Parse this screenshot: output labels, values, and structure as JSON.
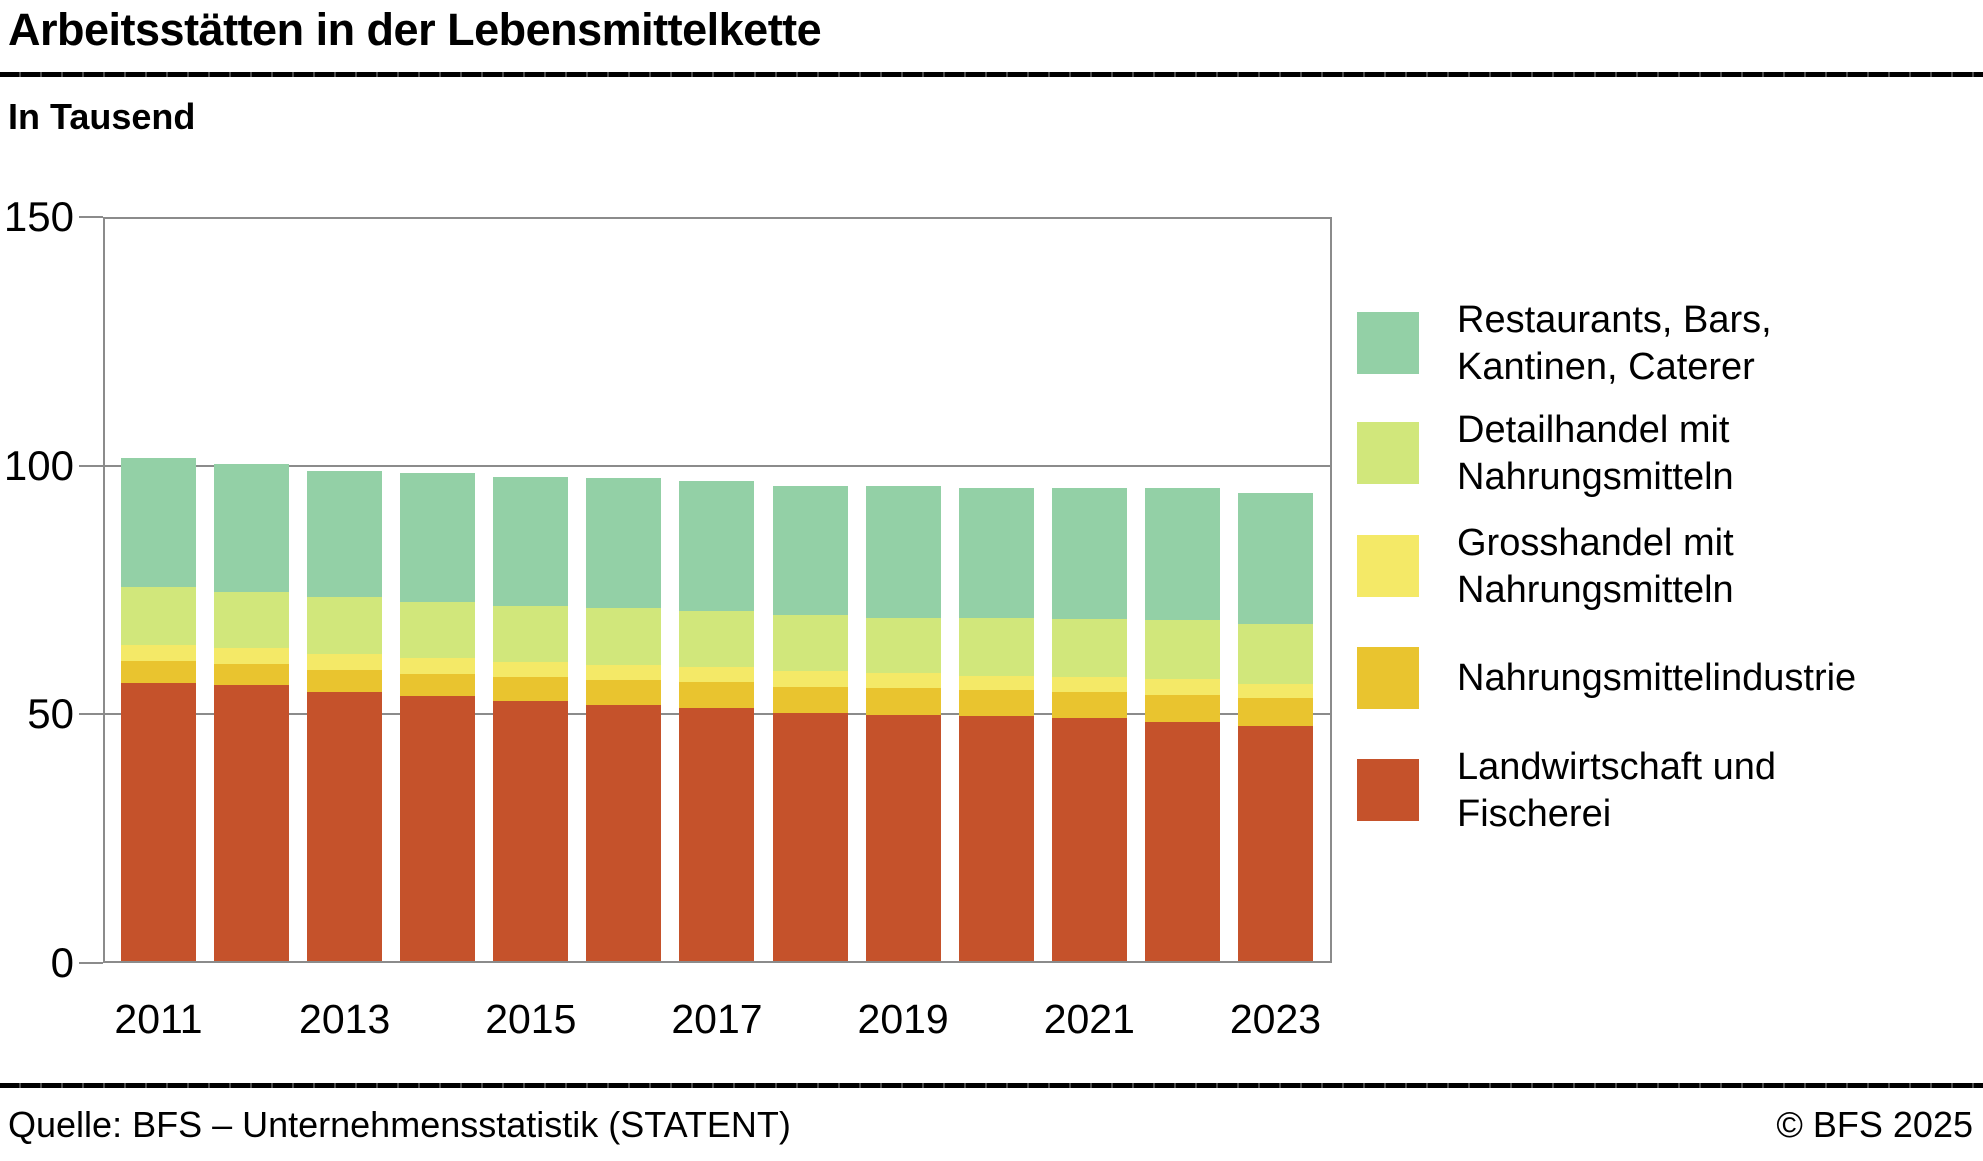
{
  "header": {
    "title": "Arbeitsstätten in der Lebensmittelkette",
    "subtitle": "In Tausend"
  },
  "footer": {
    "source": "Quelle: BFS – Unternehmensstatistik (STATENT)",
    "copyright": "© BFS 2025"
  },
  "colors": {
    "restaurants": "#93D0A6",
    "detailhandel": "#D1E77B",
    "grosshandel": "#F4E967",
    "industrie": "#E9C42F",
    "landwirtschaft": "#C5522B",
    "frame_gray": "#8b8b8b"
  },
  "legend": [
    {
      "key": "restaurants",
      "lines": [
        "Restaurants, Bars,",
        "Kantinen, Caterer"
      ]
    },
    {
      "key": "detailhandel",
      "lines": [
        "Detailhandel mit",
        "Nahrungsmitteln"
      ]
    },
    {
      "key": "grosshandel",
      "lines": [
        "Grosshandel mit",
        "Nahrungsmitteln"
      ]
    },
    {
      "key": "industrie",
      "lines": [
        "Nahrungsmittelindustrie"
      ]
    },
    {
      "key": "landwirtschaft",
      "lines": [
        "Landwirtschaft und",
        "Fischerei"
      ]
    }
  ],
  "chart_data": {
    "type": "bar",
    "stacked": true,
    "title": "Arbeitsstätten in der Lebensmittelkette",
    "ylabel": "In Tausend",
    "ylim": [
      0,
      150
    ],
    "yticks": [
      0,
      50,
      100,
      150
    ],
    "grid_at": [
      50,
      100
    ],
    "legend_position": "right",
    "categories": [
      2011,
      2012,
      2013,
      2014,
      2015,
      2016,
      2017,
      2018,
      2019,
      2020,
      2021,
      2022,
      2023
    ],
    "x_tick_labels": [
      "2011",
      "2013",
      "2015",
      "2017",
      "2019",
      "2021",
      "2023"
    ],
    "series": [
      {
        "name": "Landwirtschaft und Fischerei",
        "key": "landwirtschaft",
        "values": [
          56.3,
          55.8,
          54.4,
          53.5,
          52.5,
          51.8,
          51.2,
          50.2,
          49.8,
          49.5,
          49.1,
          48.4,
          47.6
        ]
      },
      {
        "name": "Nahrungsmittelindustrie",
        "key": "industrie",
        "values": [
          4.3,
          4.3,
          4.4,
          4.6,
          4.9,
          5.1,
          5.2,
          5.3,
          5.4,
          5.3,
          5.3,
          5.4,
          5.5
        ]
      },
      {
        "name": "Grosshandel mit Nahrungsmitteln",
        "key": "grosshandel",
        "values": [
          3.2,
          3.2,
          3.2,
          3.1,
          3.1,
          3.0,
          3.0,
          3.1,
          3.0,
          2.9,
          3.1,
          3.3,
          2.9
        ]
      },
      {
        "name": "Detailhandel mit Nahrungsmitteln",
        "key": "detailhandel",
        "values": [
          11.9,
          11.4,
          11.5,
          11.4,
          11.3,
          11.5,
          11.4,
          11.3,
          11.2,
          11.6,
          11.6,
          11.8,
          12.2
        ]
      },
      {
        "name": "Restaurants, Bars, Kantinen, Caterer",
        "key": "restaurants",
        "values": [
          25.9,
          25.7,
          25.6,
          26.0,
          26.1,
          26.2,
          26.3,
          26.2,
          26.7,
          26.4,
          26.6,
          26.7,
          26.4
        ]
      }
    ],
    "totals": [
      101.6,
      100.4,
      99.1,
      98.6,
      97.9,
      97.6,
      97.1,
      96.1,
      96.1,
      95.7,
      95.7,
      95.6,
      94.6
    ]
  }
}
